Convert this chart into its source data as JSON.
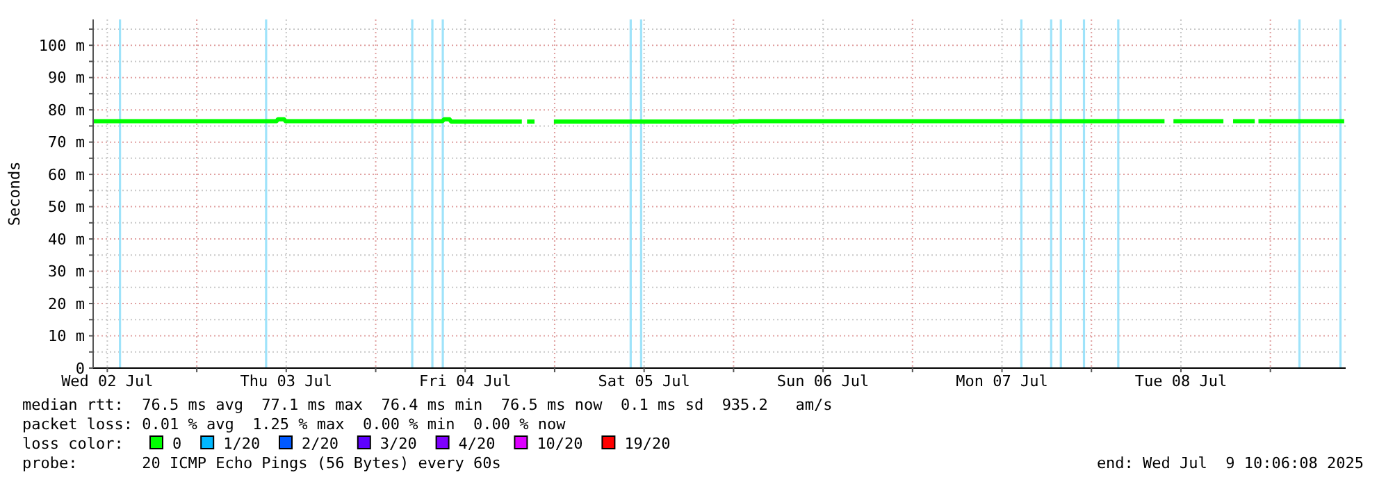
{
  "chart_data": {
    "type": "line",
    "ylabel": "Seconds",
    "xlim": [
      "2025-07-02T10:06",
      "2025-07-09T10:06"
    ],
    "xticks": [
      {
        "value": "2025-07-02T12:00",
        "label": "Wed 02 Jul"
      },
      {
        "value": "2025-07-03T00:00",
        "label": null
      },
      {
        "value": "2025-07-03T12:00",
        "label": "Thu 03 Jul"
      },
      {
        "value": "2025-07-04T00:00",
        "label": null
      },
      {
        "value": "2025-07-04T12:00",
        "label": "Fri 04 Jul"
      },
      {
        "value": "2025-07-05T00:00",
        "label": null
      },
      {
        "value": "2025-07-05T12:00",
        "label": "Sat 05 Jul"
      },
      {
        "value": "2025-07-06T00:00",
        "label": null
      },
      {
        "value": "2025-07-06T12:00",
        "label": "Sun 06 Jul"
      },
      {
        "value": "2025-07-07T00:00",
        "label": null
      },
      {
        "value": "2025-07-07T12:00",
        "label": "Mon 07 Jul"
      },
      {
        "value": "2025-07-08T00:00",
        "label": null
      },
      {
        "value": "2025-07-08T12:00",
        "label": "Tue 08 Jul"
      },
      {
        "value": "2025-07-09T00:00",
        "label": null
      }
    ],
    "ylim": [
      0,
      108
    ],
    "yticks": [
      0,
      {
        "value": 5,
        "label": null
      },
      {
        "value": 10,
        "label": "10 m"
      },
      {
        "value": 15,
        "label": null
      },
      {
        "value": 20,
        "label": "20 m"
      },
      {
        "value": 25,
        "label": null
      },
      {
        "value": 30,
        "label": "30 m"
      },
      {
        "value": 35,
        "label": null
      },
      {
        "value": 40,
        "label": "40 m"
      },
      {
        "value": 45,
        "label": null
      },
      {
        "value": 50,
        "label": "50 m"
      },
      {
        "value": 55,
        "label": null
      },
      {
        "value": 60,
        "label": "60 m"
      },
      {
        "value": 65,
        "label": null
      },
      {
        "value": 70,
        "label": "70 m"
      },
      {
        "value": 75,
        "label": null
      },
      {
        "value": 80,
        "label": "80 m"
      },
      {
        "value": 85,
        "label": null
      },
      {
        "value": 90,
        "label": "90 m"
      },
      {
        "value": 95,
        "label": null
      },
      {
        "value": 100,
        "label": "100 m"
      },
      {
        "value": 105,
        "label": null
      }
    ],
    "grid": true,
    "legend": "bottom",
    "legend_title": "loss color:",
    "marker": "none",
    "line_style": "solid",
    "series": [
      {
        "name": "0",
        "color": "#00ff00",
        "x": [
          "2025-07-02T10:06",
          "2025-07-03T10:42",
          "2025-07-03T10:54",
          "2025-07-03T11:42",
          "2025-07-03T11:54",
          "2025-07-04T08:57",
          "2025-07-04T09:12",
          "2025-07-04T09:54",
          "2025-07-04T10:06",
          "2025-07-04T19:36",
          "2025-07-04T20:00",
          "2025-07-04T20:18",
          "2025-07-04T21:18",
          "2025-07-04T22:00",
          "2025-07-04T23:54",
          "2025-07-06T00:36",
          "2025-07-06T00:48",
          "2025-07-08T09:48",
          "2025-07-08T10:12",
          "2025-07-08T11:00",
          "2025-07-08T17:42",
          "2025-07-08T18:30",
          "2025-07-08T19:00",
          "2025-07-08T21:54",
          "2025-07-08T22:10",
          "2025-07-08T22:24",
          "2025-07-09T09:54"
        ],
        "values": [
          76.5,
          76.5,
          77.1,
          77.1,
          76.5,
          76.5,
          77.1,
          77.1,
          76.4,
          76.4,
          null,
          76.4,
          76.4,
          null,
          76.4,
          76.4,
          76.5,
          76.5,
          null,
          76.5,
          76.5,
          null,
          76.5,
          76.5,
          null,
          76.5,
          76.5
        ]
      },
      {
        "name": "1/20",
        "color": "#00b8ff"
      },
      {
        "name": "2/20",
        "color": "#0059ff"
      },
      {
        "name": "3/20",
        "color": "#5e00ff"
      },
      {
        "name": "4/20",
        "color": "#7e00ff"
      },
      {
        "name": "10/20",
        "color": "#dd00ff"
      },
      {
        "name": "19/20",
        "color": "#ff0000"
      }
    ],
    "ref_lines": [
      {
        "axis": "x",
        "value": "2025-07-02T13:42",
        "color": "#9fe3fa"
      },
      {
        "axis": "x",
        "value": "2025-07-03T09:18",
        "color": "#9fe3fa"
      },
      {
        "axis": "x",
        "value": "2025-07-04T04:54",
        "color": "#9fe3fa"
      },
      {
        "axis": "x",
        "value": "2025-07-04T07:36",
        "color": "#9fe3fa"
      },
      {
        "axis": "x",
        "value": "2025-07-04T09:00",
        "color": "#9fe3fa"
      },
      {
        "axis": "x",
        "value": "2025-07-05T10:12",
        "color": "#9fe3fa"
      },
      {
        "axis": "x",
        "value": "2025-07-05T11:36",
        "color": "#9fe3fa"
      },
      {
        "axis": "x",
        "value": "2025-07-07T14:36",
        "color": "#9fe3fa"
      },
      {
        "axis": "x",
        "value": "2025-07-07T18:36",
        "color": "#9fe3fa"
      },
      {
        "axis": "x",
        "value": "2025-07-07T19:54",
        "color": "#9fe3fa"
      },
      {
        "axis": "x",
        "value": "2025-07-07T23:00",
        "color": "#9fe3fa"
      },
      {
        "axis": "x",
        "value": "2025-07-08T03:36",
        "color": "#9fe3fa"
      },
      {
        "axis": "x",
        "value": "2025-07-09T03:54",
        "color": "#9fe3fa"
      },
      {
        "axis": "x",
        "value": "2025-07-09T09:24",
        "color": "#9fe3fa"
      }
    ],
    "annotations": [
      "median rtt:  76.5 ms avg  77.1 ms max  76.4 ms min  76.5 ms now  0.1 ms sd  935.2   am/s",
      "packet loss: 0.01 % avg  1.25 % max  0.00 % min  0.00 % now",
      "probe:       20 ICMP Echo Pings (56 Bytes) every 60s",
      "end: Wed Jul  9 10:06:08 2025"
    ]
  }
}
